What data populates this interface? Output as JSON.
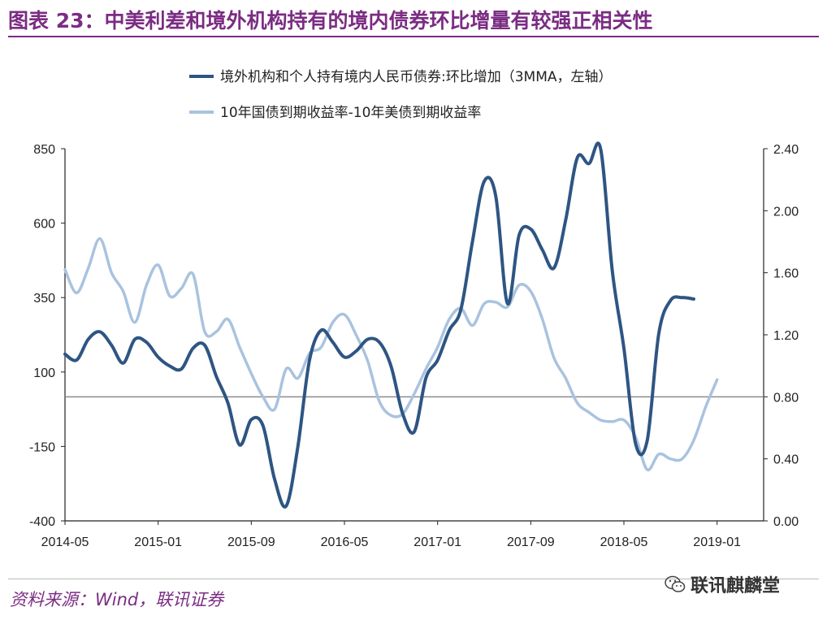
{
  "figure": {
    "title": "图表 23：中美利差和境外机构持有的境内债券环比增量有较强正相关性",
    "source": "资料来源：Wind，联讯证券",
    "brand": "联讯麒麟堂",
    "brand_icon": "wechat-icon",
    "colors": {
      "title": "#7b2c83",
      "dark_series": "#2e5583",
      "light_series": "#a9c3df",
      "zero_line": "#8c8c8c"
    }
  },
  "chart_data": {
    "type": "line",
    "x_tick_labels": [
      "2014-05",
      "2015-01",
      "2015-09",
      "2016-05",
      "2017-01",
      "2017-09",
      "2018-05",
      "2019-01"
    ],
    "x_range": [
      "2014-05",
      "2019-05"
    ],
    "y_left": {
      "range": [
        -400,
        850
      ],
      "ticks": [
        "-400",
        "-150",
        "100",
        "350",
        "600",
        "850"
      ]
    },
    "y_right": {
      "range": [
        0.0,
        2.4
      ],
      "ticks": [
        "0.00",
        "0.40",
        "0.80",
        "1.20",
        "1.60",
        "2.00",
        "2.40"
      ]
    },
    "reference_line": {
      "axis": "right",
      "value": 0.8
    },
    "grid": false,
    "legend_position": "top-center",
    "series": [
      {
        "name": "境外机构和个人持有境内人民币债券:环比增加（3MMA，左轴）",
        "axis": "left",
        "color": "#2e5583",
        "x": [
          "2014-05",
          "2014-06",
          "2014-07",
          "2014-08",
          "2014-09",
          "2014-10",
          "2014-11",
          "2014-12",
          "2015-01",
          "2015-02",
          "2015-03",
          "2015-04",
          "2015-05",
          "2015-06",
          "2015-07",
          "2015-08",
          "2015-09",
          "2015-10",
          "2015-11",
          "2015-12",
          "2016-01",
          "2016-02",
          "2016-03",
          "2016-04",
          "2016-05",
          "2016-06",
          "2016-07",
          "2016-08",
          "2016-09",
          "2016-10",
          "2016-11",
          "2016-12",
          "2017-01",
          "2017-02",
          "2017-03",
          "2017-04",
          "2017-05",
          "2017-06",
          "2017-07",
          "2017-08",
          "2017-09",
          "2017-10",
          "2017-11",
          "2017-12",
          "2018-01",
          "2018-02",
          "2018-03",
          "2018-04",
          "2018-05",
          "2018-06",
          "2018-07",
          "2018-08",
          "2018-09",
          "2018-10",
          "2018-11",
          "2018-12",
          "2019-01",
          "2019-02",
          "2019-03",
          "2019-04"
        ],
        "values": [
          160,
          140,
          210,
          235,
          190,
          130,
          210,
          200,
          150,
          120,
          110,
          180,
          190,
          85,
          -5,
          -145,
          -60,
          -80,
          -260,
          -350,
          -150,
          140,
          240,
          200,
          150,
          170,
          210,
          200,
          120,
          -40,
          -100,
          80,
          140,
          240,
          310,
          540,
          740,
          690,
          330,
          560,
          580,
          510,
          450,
          610,
          820,
          800,
          850,
          440,
          180,
          -140,
          -130,
          230,
          340,
          350,
          345,
          null,
          null,
          null,
          null,
          null
        ]
      },
      {
        "name": "10年国债到期收益率-10年美债到期收益率",
        "axis": "right",
        "color": "#a9c3df",
        "x": [
          "2014-05",
          "2014-06",
          "2014-07",
          "2014-08",
          "2014-09",
          "2014-10",
          "2014-11",
          "2014-12",
          "2015-01",
          "2015-02",
          "2015-03",
          "2015-04",
          "2015-05",
          "2015-06",
          "2015-07",
          "2015-08",
          "2015-09",
          "2015-10",
          "2015-11",
          "2015-12",
          "2016-01",
          "2016-02",
          "2016-03",
          "2016-04",
          "2016-05",
          "2016-06",
          "2016-07",
          "2016-08",
          "2016-09",
          "2016-10",
          "2016-11",
          "2016-12",
          "2017-01",
          "2017-02",
          "2017-03",
          "2017-04",
          "2017-05",
          "2017-06",
          "2017-07",
          "2017-08",
          "2017-09",
          "2017-10",
          "2017-11",
          "2017-12",
          "2018-01",
          "2018-02",
          "2018-03",
          "2018-04",
          "2018-05",
          "2018-06",
          "2018-07",
          "2018-08",
          "2018-09",
          "2018-10",
          "2018-11",
          "2018-12",
          "2019-01",
          "2019-02",
          "2019-03",
          "2019-04"
        ],
        "values": [
          1.62,
          1.47,
          1.63,
          1.82,
          1.6,
          1.48,
          1.28,
          1.52,
          1.65,
          1.45,
          1.5,
          1.59,
          1.22,
          1.22,
          1.3,
          1.12,
          0.95,
          0.8,
          0.72,
          0.98,
          0.92,
          1.08,
          1.12,
          1.28,
          1.33,
          1.2,
          1.03,
          0.77,
          0.68,
          0.69,
          0.82,
          0.98,
          1.12,
          1.3,
          1.37,
          1.26,
          1.4,
          1.41,
          1.38,
          1.52,
          1.48,
          1.3,
          1.05,
          0.92,
          0.76,
          0.7,
          0.65,
          0.64,
          0.65,
          0.54,
          0.33,
          0.43,
          0.4,
          0.4,
          0.52,
          0.73,
          0.91,
          null,
          null,
          null
        ]
      }
    ]
  }
}
